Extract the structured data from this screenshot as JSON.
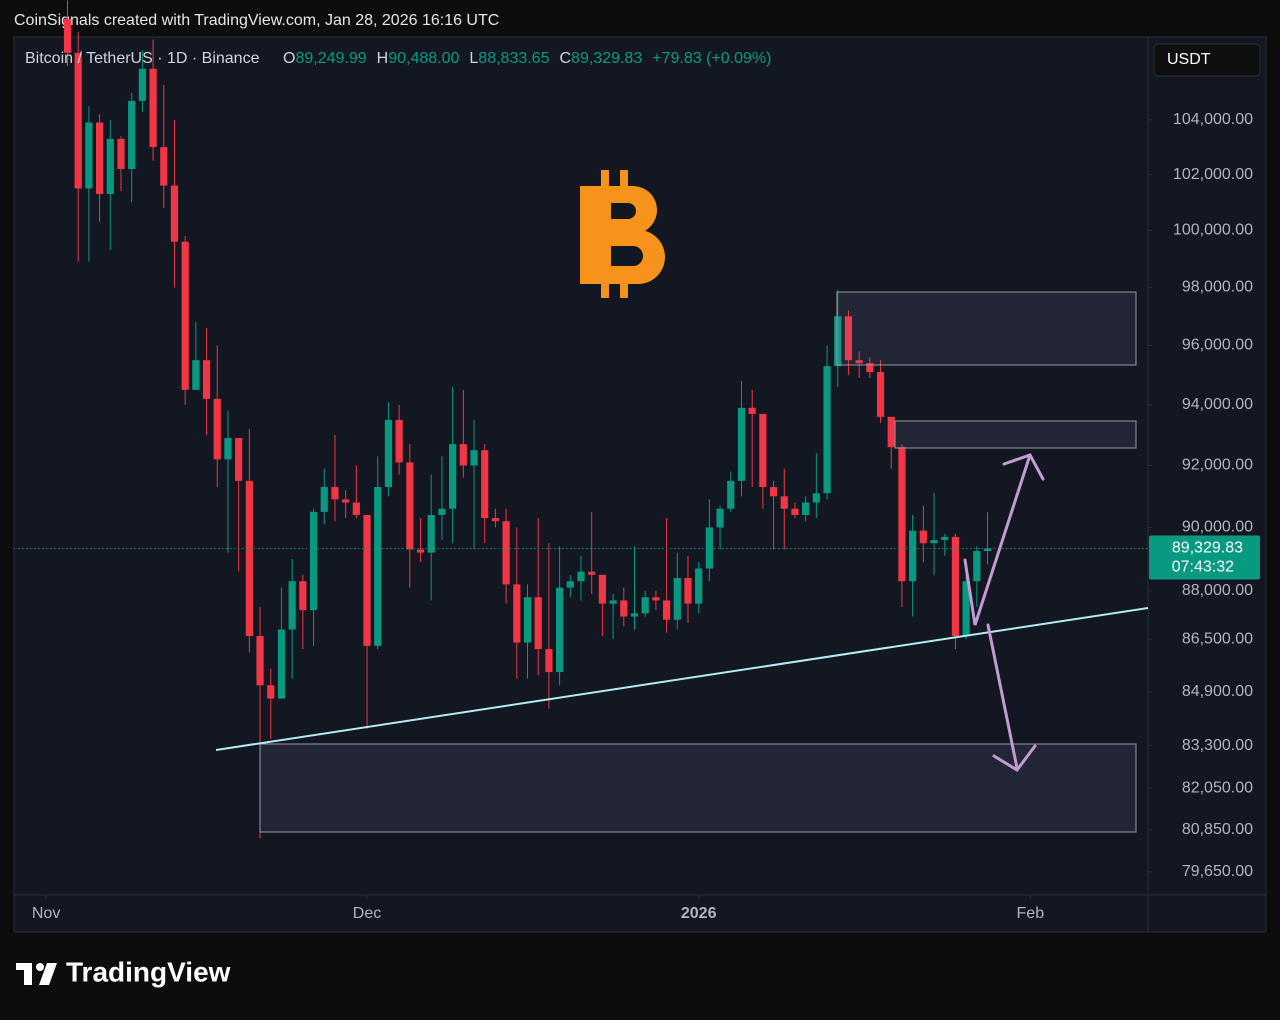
{
  "header": {
    "attribution": "CoinSignals created with TradingView.com, Jan 28, 2026 16:16 UTC"
  },
  "footer": {
    "brand": "TradingView"
  },
  "chart_data": {
    "type": "candlestick",
    "title": "Bitcoin / TetherUS · 1D · Binance",
    "legend_values": [
      {
        "key": "O",
        "value": "89,249.99"
      },
      {
        "key": "H",
        "value": "90,488.00"
      },
      {
        "key": "L",
        "value": "88,833.65"
      },
      {
        "key": "C",
        "value": "89,329.83"
      }
    ],
    "change": "+79.83 (+0.09%)",
    "currency": "USDT",
    "last_price": {
      "value": 89329.83,
      "label": "89,329.83"
    },
    "countdown": "07:43:32",
    "up_color": "#089981",
    "down_color": "#f23645",
    "log_scale": true,
    "ylim": [
      79000,
      107100
    ],
    "yticks": [
      {
        "value": 104000,
        "label": "104,000.00"
      },
      {
        "value": 102000,
        "label": "102,000.00"
      },
      {
        "value": 100000,
        "label": "100,000.00"
      },
      {
        "value": 98000,
        "label": "98,000.00"
      },
      {
        "value": 96000,
        "label": "96,000.00"
      },
      {
        "value": 94000,
        "label": "94,000.00"
      },
      {
        "value": 92000,
        "label": "92,000.00"
      },
      {
        "value": 90000,
        "label": "90,000.00"
      },
      {
        "value": 88000,
        "label": "88,000.00"
      },
      {
        "value": 86500,
        "label": "86,500.00"
      },
      {
        "value": 84900,
        "label": "84,900.00"
      },
      {
        "value": 83300,
        "label": "83,300.00"
      },
      {
        "value": 82050,
        "label": "82,050.00"
      },
      {
        "value": 80850,
        "label": "80,850.00"
      },
      {
        "value": 79650,
        "label": "79,650.00"
      }
    ],
    "xlim": [
      -5,
      101
    ],
    "xticks": [
      {
        "value": -2,
        "label": "Nov"
      },
      {
        "value": 28,
        "label": "Dec"
      },
      {
        "value": 59,
        "label": "2026"
      },
      {
        "value": 90,
        "label": "Feb"
      }
    ],
    "candles": [
      {
        "o": 107800,
        "h": 108500,
        "l": 106000,
        "c": 106500
      },
      {
        "o": 106500,
        "h": 107300,
        "l": 98900,
        "c": 101500
      },
      {
        "o": 101500,
        "h": 104500,
        "l": 98900,
        "c": 103900
      },
      {
        "o": 103900,
        "h": 104200,
        "l": 100300,
        "c": 101300
      },
      {
        "o": 101300,
        "h": 104000,
        "l": 99300,
        "c": 103300
      },
      {
        "o": 103300,
        "h": 103400,
        "l": 101400,
        "c": 102200
      },
      {
        "o": 102200,
        "h": 105000,
        "l": 101000,
        "c": 104700
      },
      {
        "o": 104700,
        "h": 106600,
        "l": 104300,
        "c": 105900
      },
      {
        "o": 105900,
        "h": 107000,
        "l": 102500,
        "c": 103000
      },
      {
        "o": 103000,
        "h": 105300,
        "l": 100800,
        "c": 101600
      },
      {
        "o": 101600,
        "h": 104000,
        "l": 98000,
        "c": 99600
      },
      {
        "o": 99600,
        "h": 99800,
        "l": 94000,
        "c": 94500
      },
      {
        "o": 94500,
        "h": 96800,
        "l": 94500,
        "c": 95500
      },
      {
        "o": 95500,
        "h": 96600,
        "l": 93000,
        "c": 94200
      },
      {
        "o": 94200,
        "h": 96000,
        "l": 91300,
        "c": 92200
      },
      {
        "o": 92200,
        "h": 93800,
        "l": 89200,
        "c": 92900
      },
      {
        "o": 92900,
        "h": 92900,
        "l": 88600,
        "c": 91500
      },
      {
        "o": 91500,
        "h": 93200,
        "l": 86100,
        "c": 86600
      },
      {
        "o": 86600,
        "h": 87500,
        "l": 80600,
        "c": 85100
      },
      {
        "o": 85100,
        "h": 85600,
        "l": 83500,
        "c": 84700
      },
      {
        "o": 84700,
        "h": 88100,
        "l": 84700,
        "c": 86800
      },
      {
        "o": 86800,
        "h": 89000,
        "l": 85300,
        "c": 88300
      },
      {
        "o": 88300,
        "h": 88500,
        "l": 86200,
        "c": 87400
      },
      {
        "o": 87400,
        "h": 90600,
        "l": 86300,
        "c": 90500
      },
      {
        "o": 90500,
        "h": 91900,
        "l": 90100,
        "c": 91300
      },
      {
        "o": 91300,
        "h": 93000,
        "l": 90200,
        "c": 90900
      },
      {
        "o": 90900,
        "h": 91200,
        "l": 90300,
        "c": 90800
      },
      {
        "o": 90800,
        "h": 92000,
        "l": 90300,
        "c": 90400
      },
      {
        "o": 90400,
        "h": 90400,
        "l": 83800,
        "c": 86300
      },
      {
        "o": 86300,
        "h": 92300,
        "l": 86200,
        "c": 91300
      },
      {
        "o": 91300,
        "h": 94100,
        "l": 91000,
        "c": 93500
      },
      {
        "o": 93500,
        "h": 94000,
        "l": 91700,
        "c": 92100
      },
      {
        "o": 92100,
        "h": 92700,
        "l": 88100,
        "c": 89300
      },
      {
        "o": 89300,
        "h": 90300,
        "l": 88900,
        "c": 89200
      },
      {
        "o": 89200,
        "h": 91700,
        "l": 87700,
        "c": 90400
      },
      {
        "o": 90400,
        "h": 92300,
        "l": 89600,
        "c": 90600
      },
      {
        "o": 90600,
        "h": 94600,
        "l": 89500,
        "c": 92700
      },
      {
        "o": 92700,
        "h": 94500,
        "l": 91600,
        "c": 92000
      },
      {
        "o": 92000,
        "h": 93500,
        "l": 89300,
        "c": 92500
      },
      {
        "o": 92500,
        "h": 92700,
        "l": 89500,
        "c": 90300
      },
      {
        "o": 90300,
        "h": 90600,
        "l": 90000,
        "c": 90200
      },
      {
        "o": 90200,
        "h": 90600,
        "l": 87600,
        "c": 88200
      },
      {
        "o": 88200,
        "h": 90000,
        "l": 85300,
        "c": 86400
      },
      {
        "o": 86400,
        "h": 88200,
        "l": 85300,
        "c": 87800
      },
      {
        "o": 87800,
        "h": 90300,
        "l": 85400,
        "c": 86200
      },
      {
        "o": 86200,
        "h": 89500,
        "l": 84400,
        "c": 85500
      },
      {
        "o": 85500,
        "h": 89400,
        "l": 85100,
        "c": 88100
      },
      {
        "o": 88100,
        "h": 88500,
        "l": 87800,
        "c": 88300
      },
      {
        "o": 88300,
        "h": 89100,
        "l": 87700,
        "c": 88600
      },
      {
        "o": 88600,
        "h": 90500,
        "l": 87900,
        "c": 88500
      },
      {
        "o": 88500,
        "h": 88500,
        "l": 86600,
        "c": 87600
      },
      {
        "o": 87600,
        "h": 87900,
        "l": 86500,
        "c": 87700
      },
      {
        "o": 87700,
        "h": 88100,
        "l": 86900,
        "c": 87200
      },
      {
        "o": 87200,
        "h": 89400,
        "l": 86800,
        "c": 87300
      },
      {
        "o": 87300,
        "h": 88000,
        "l": 87200,
        "c": 87800
      },
      {
        "o": 87800,
        "h": 88000,
        "l": 87400,
        "c": 87700
      },
      {
        "o": 87700,
        "h": 90300,
        "l": 86700,
        "c": 87100
      },
      {
        "o": 87100,
        "h": 89200,
        "l": 86800,
        "c": 88400
      },
      {
        "o": 88400,
        "h": 89100,
        "l": 87000,
        "c": 87600
      },
      {
        "o": 87600,
        "h": 88900,
        "l": 87300,
        "c": 88700
      },
      {
        "o": 88700,
        "h": 90900,
        "l": 88300,
        "c": 90000
      },
      {
        "o": 90000,
        "h": 90700,
        "l": 89300,
        "c": 90600
      },
      {
        "o": 90600,
        "h": 91800,
        "l": 90500,
        "c": 91500
      },
      {
        "o": 91500,
        "h": 94800,
        "l": 91000,
        "c": 93900
      },
      {
        "o": 93900,
        "h": 94500,
        "l": 91300,
        "c": 93700
      },
      {
        "o": 93700,
        "h": 93700,
        "l": 90600,
        "c": 91300
      },
      {
        "o": 91300,
        "h": 91500,
        "l": 89300,
        "c": 91000
      },
      {
        "o": 91000,
        "h": 91900,
        "l": 89300,
        "c": 90600
      },
      {
        "o": 90600,
        "h": 90800,
        "l": 90300,
        "c": 90400
      },
      {
        "o": 90400,
        "h": 91000,
        "l": 90200,
        "c": 90800
      },
      {
        "o": 90800,
        "h": 92400,
        "l": 90300,
        "c": 91100
      },
      {
        "o": 91100,
        "h": 96000,
        "l": 90900,
        "c": 95300
      },
      {
        "o": 95300,
        "h": 97900,
        "l": 94600,
        "c": 97000
      },
      {
        "o": 97000,
        "h": 97200,
        "l": 95000,
        "c": 95500
      },
      {
        "o": 95500,
        "h": 95800,
        "l": 94900,
        "c": 95400
      },
      {
        "o": 95400,
        "h": 95600,
        "l": 94900,
        "c": 95100
      },
      {
        "o": 95100,
        "h": 95500,
        "l": 93400,
        "c": 93600
      },
      {
        "o": 93600,
        "h": 93600,
        "l": 91900,
        "c": 92600
      },
      {
        "o": 92600,
        "h": 92700,
        "l": 87500,
        "c": 88300
      },
      {
        "o": 88300,
        "h": 90400,
        "l": 87200,
        "c": 89900
      },
      {
        "o": 89900,
        "h": 90700,
        "l": 88900,
        "c": 89500
      },
      {
        "o": 89500,
        "h": 91100,
        "l": 88500,
        "c": 89600
      },
      {
        "o": 89600,
        "h": 89800,
        "l": 89100,
        "c": 89700
      },
      {
        "o": 89700,
        "h": 89800,
        "l": 86200,
        "c": 86600
      },
      {
        "o": 86600,
        "h": 88900,
        "l": 86500,
        "c": 88300
      },
      {
        "o": 88300,
        "h": 89400,
        "l": 87500,
        "c": 89250
      },
      {
        "o": 89249.99,
        "h": 90488,
        "l": 88833.65,
        "c": 89329.83
      }
    ]
  }
}
